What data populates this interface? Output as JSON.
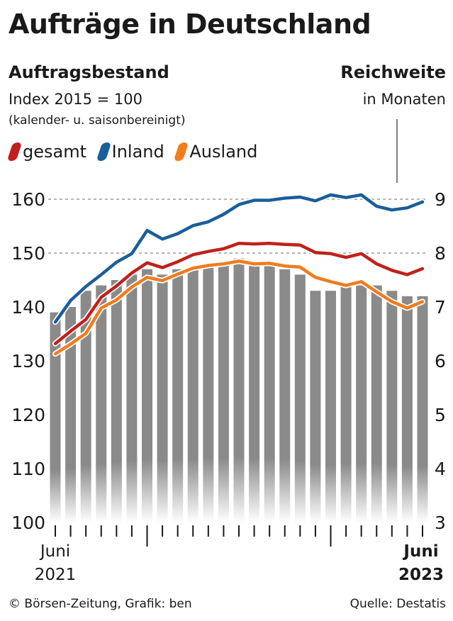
{
  "title": "Aufträge in Deutschland",
  "left_label": "Auftragsbestand",
  "left_sub1": "Index 2015 = 100",
  "left_sub2": "(kalender- u. saisonbereinigt)",
  "right_label": "Reichweite",
  "right_sub": "in Monaten",
  "footer_left": "© Börsen-Zeitung, Grafik: ben",
  "footer_right": "Quelle: Destatis",
  "colors": {
    "gesamt": "#c0211c",
    "inland": "#1a5e9a",
    "ausland": "#f07c1c",
    "bars": "#8a8a8a",
    "grid": "#888888"
  },
  "chart_data": {
    "type": "line",
    "x_start_label": [
      "Juni",
      "2021"
    ],
    "x_end_label": [
      "Juni",
      "2023"
    ],
    "x": [
      "2021-06",
      "2021-07",
      "2021-08",
      "2021-09",
      "2021-10",
      "2021-11",
      "2021-12",
      "2022-01",
      "2022-02",
      "2022-03",
      "2022-04",
      "2022-05",
      "2022-06",
      "2022-07",
      "2022-08",
      "2022-09",
      "2022-10",
      "2022-11",
      "2022-12",
      "2023-01",
      "2023-02",
      "2023-03",
      "2023-04",
      "2023-05",
      "2023-06"
    ],
    "left_axis": {
      "ylim": [
        100,
        160
      ],
      "ticks": [
        100,
        110,
        120,
        130,
        140,
        150,
        160
      ]
    },
    "right_axis": {
      "ylim": [
        3,
        9
      ],
      "ticks": [
        3,
        4,
        5,
        6,
        7,
        8,
        9
      ]
    },
    "gridlines": [
      150,
      160
    ],
    "series": [
      {
        "name": "gesamt",
        "axis": "left",
        "values": [
          133.2,
          135.5,
          137.7,
          141.8,
          143.9,
          146.3,
          148.2,
          147.3,
          148.4,
          149.7,
          150.3,
          150.8,
          151.8,
          151.7,
          151.8,
          151.6,
          151.5,
          150.1,
          149.9,
          149.2,
          149.9,
          148.0,
          146.8,
          146.0,
          147.1
        ]
      },
      {
        "name": "Inland",
        "axis": "left",
        "values": [
          137.2,
          141.2,
          143.8,
          146.0,
          148.3,
          149.9,
          154.2,
          152.6,
          153.6,
          155.1,
          155.8,
          157.2,
          159.0,
          159.8,
          159.8,
          160.2,
          160.4,
          159.7,
          160.8,
          160.3,
          160.8,
          158.7,
          158.0,
          158.4,
          159.5
        ]
      },
      {
        "name": "Ausland",
        "axis": "left",
        "values": [
          131.3,
          133.1,
          135.1,
          139.8,
          141.3,
          143.7,
          145.5,
          144.9,
          146.1,
          147.2,
          147.7,
          148.0,
          148.5,
          148.0,
          148.1,
          147.6,
          147.4,
          145.5,
          144.7,
          144.0,
          144.7,
          142.8,
          141.0,
          139.8,
          141.0
        ]
      },
      {
        "name": "Reichweite",
        "axis": "right",
        "type": "bar",
        "values": [
          6.9,
          7.0,
          7.3,
          7.4,
          7.5,
          7.6,
          7.7,
          7.6,
          7.7,
          7.7,
          7.8,
          7.8,
          7.9,
          7.8,
          7.8,
          7.7,
          7.6,
          7.3,
          7.3,
          7.4,
          7.4,
          7.4,
          7.3,
          7.2,
          7.2
        ]
      }
    ]
  }
}
